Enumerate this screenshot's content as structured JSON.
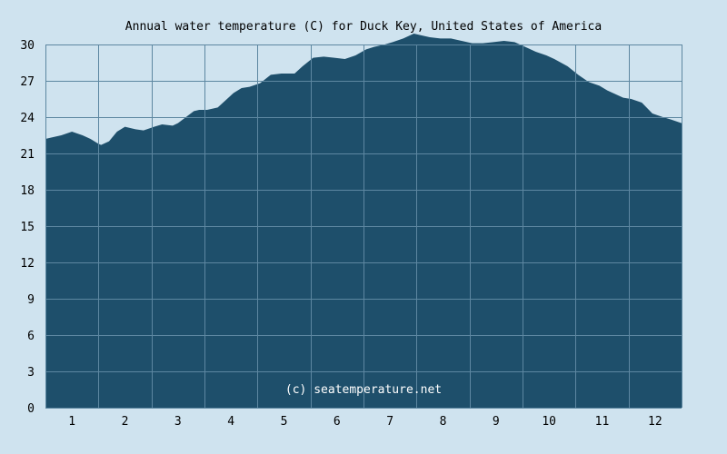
{
  "chart_data": {
    "type": "area",
    "title": "Annual water temperature (C) for Duck Key, United States of America",
    "xlabel": "",
    "ylabel": "",
    "credit": "(c) seatemperature.net",
    "x_tick_labels": [
      "1",
      "2",
      "3",
      "4",
      "5",
      "6",
      "7",
      "8",
      "9",
      "10",
      "11",
      "12"
    ],
    "y_ticks": [
      0,
      3,
      6,
      9,
      12,
      15,
      18,
      21,
      24,
      27,
      30
    ],
    "ylim": [
      0,
      30
    ],
    "xlim": [
      0.5,
      12.5
    ],
    "grid": true,
    "colors": {
      "background": "#cfe3ef",
      "fill": "#1e4f6b",
      "grid": "#5d87a1",
      "axis": "#5d87a1"
    },
    "series": [
      {
        "x": [
          0.5,
          0.6,
          0.8,
          1.0,
          1.2,
          1.35,
          1.5,
          1.55,
          1.7,
          1.85,
          2.0,
          2.2,
          2.35,
          2.55,
          2.7,
          2.9,
          3.0,
          3.15,
          3.3,
          3.4,
          3.55,
          3.75,
          3.9,
          4.05,
          4.2,
          4.35,
          4.55,
          4.75,
          4.95,
          5.2,
          5.35,
          5.55,
          5.75,
          5.95,
          6.15,
          6.35,
          6.55,
          6.7,
          6.9,
          7.05,
          7.25,
          7.45,
          7.55,
          7.75,
          7.95,
          8.15,
          8.35,
          8.55,
          8.75,
          8.95,
          9.15,
          9.35,
          9.55,
          9.75,
          9.95,
          10.1,
          10.35,
          10.55,
          10.75,
          10.95,
          11.1,
          11.25,
          11.4,
          11.55,
          11.75,
          11.95,
          12.15,
          12.3,
          12.5
        ],
        "values": [
          22.2,
          22.3,
          22.5,
          22.8,
          22.5,
          22.2,
          21.8,
          21.7,
          22.0,
          22.8,
          23.2,
          23.0,
          22.9,
          23.2,
          23.4,
          23.3,
          23.5,
          24.0,
          24.5,
          24.6,
          24.6,
          24.8,
          25.4,
          26.0,
          26.4,
          26.5,
          26.8,
          27.5,
          27.6,
          27.6,
          28.2,
          28.9,
          29.0,
          28.9,
          28.8,
          29.1,
          29.6,
          29.8,
          30.0,
          30.2,
          30.5,
          30.9,
          30.8,
          30.6,
          30.5,
          30.5,
          30.3,
          30.1,
          30.1,
          30.2,
          30.3,
          30.2,
          29.8,
          29.4,
          29.1,
          28.8,
          28.2,
          27.5,
          26.9,
          26.6,
          26.2,
          25.9,
          25.6,
          25.5,
          25.2,
          24.3,
          24.0,
          23.8,
          23.5
        ]
      }
    ]
  }
}
